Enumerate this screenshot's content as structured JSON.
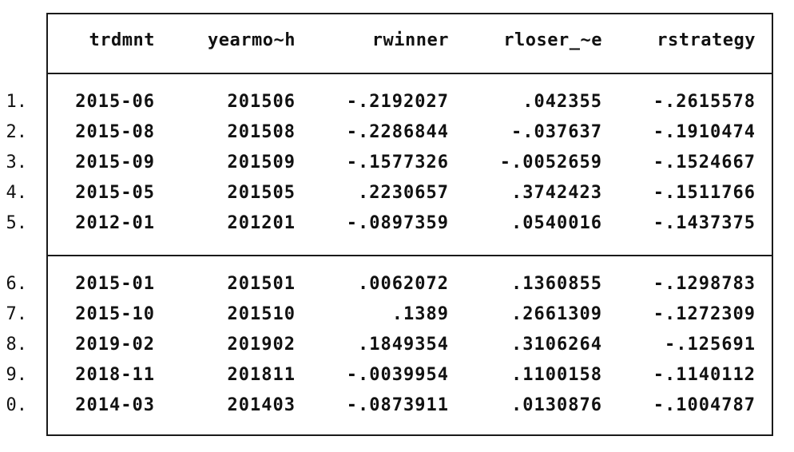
{
  "table": {
    "columns": [
      "trdmnt",
      "yearmo~h",
      "rwinner",
      "rloser_~e",
      "rstrategy"
    ],
    "rows": [
      {
        "num": "1.",
        "cells": [
          "2015-06",
          "201506",
          "-.2192027",
          ".042355",
          "-.2615578"
        ]
      },
      {
        "num": "2.",
        "cells": [
          "2015-08",
          "201508",
          "-.2286844",
          "-.037637",
          "-.1910474"
        ]
      },
      {
        "num": "3.",
        "cells": [
          "2015-09",
          "201509",
          "-.1577326",
          "-.0052659",
          "-.1524667"
        ]
      },
      {
        "num": "4.",
        "cells": [
          "2015-05",
          "201505",
          ".2230657",
          ".3742423",
          "-.1511766"
        ]
      },
      {
        "num": "5.",
        "cells": [
          "2012-01",
          "201201",
          "-.0897359",
          ".0540016",
          "-.1437375"
        ]
      },
      {
        "num": "6.",
        "cells": [
          "2015-01",
          "201501",
          ".0062072",
          ".1360855",
          "-.1298783"
        ]
      },
      {
        "num": "7.",
        "cells": [
          "2015-10",
          "201510",
          ".1389",
          ".2661309",
          "-.1272309"
        ]
      },
      {
        "num": "8.",
        "cells": [
          "2019-02",
          "201902",
          ".1849354",
          ".3106264",
          "-.125691"
        ]
      },
      {
        "num": "9.",
        "cells": [
          "2018-11",
          "201811",
          "-.0039954",
          ".1100158",
          "-.1140112"
        ]
      },
      {
        "num": "0.",
        "cells": [
          "2014-03",
          "201403",
          "-.0873911",
          ".0130876",
          "-.1004787"
        ]
      }
    ]
  }
}
